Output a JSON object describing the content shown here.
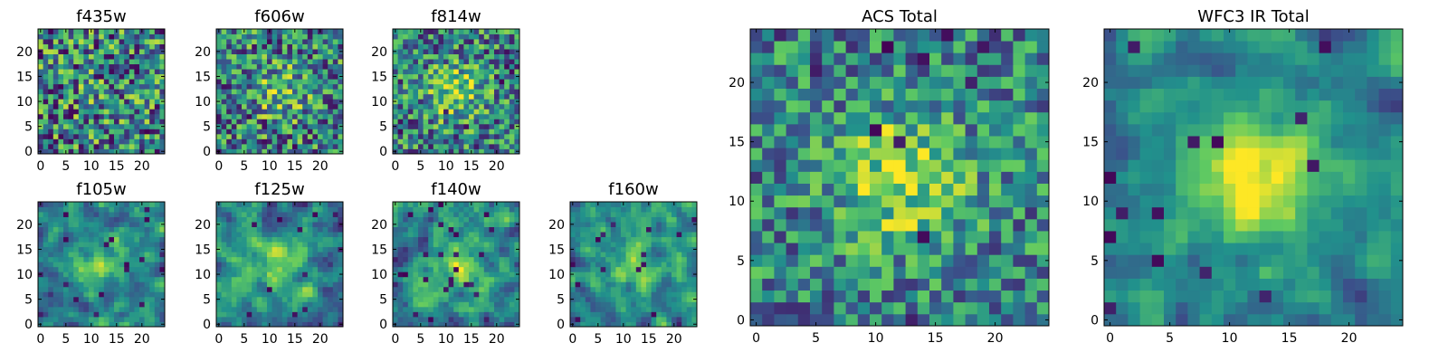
{
  "figure": {
    "colormap": "viridis",
    "colormap_stops": [
      "#440154",
      "#3b528b",
      "#21918c",
      "#5ec962",
      "#fde725"
    ]
  },
  "chart_data": [
    {
      "type": "heatmap",
      "title": "f435w",
      "grid": [
        25,
        25
      ],
      "xlim": [
        -0.5,
        24.5
      ],
      "ylim": [
        -0.5,
        24.5
      ],
      "xticks": [
        "0",
        "5",
        "10",
        "15",
        "20"
      ],
      "yticks": [
        "0",
        "5",
        "10",
        "15",
        "20"
      ],
      "central_peak": 0.05,
      "noise": 1.0,
      "smooth": 0,
      "dark_fraction": 0.04,
      "seed": 11
    },
    {
      "type": "heatmap",
      "title": "f606w",
      "grid": [
        25,
        25
      ],
      "xlim": [
        -0.5,
        24.5
      ],
      "ylim": [
        -0.5,
        24.5
      ],
      "xticks": [
        "0",
        "5",
        "10",
        "15",
        "20"
      ],
      "yticks": [
        "0",
        "5",
        "10",
        "15",
        "20"
      ],
      "central_peak": 0.25,
      "noise": 0.9,
      "smooth": 0,
      "dark_fraction": 0.03,
      "seed": 23
    },
    {
      "type": "heatmap",
      "title": "f814w",
      "grid": [
        25,
        25
      ],
      "xlim": [
        -0.5,
        24.5
      ],
      "ylim": [
        -0.5,
        24.5
      ],
      "xticks": [
        "0",
        "5",
        "10",
        "15",
        "20"
      ],
      "yticks": [
        "0",
        "5",
        "10",
        "15",
        "20"
      ],
      "central_peak": 0.35,
      "noise": 0.85,
      "smooth": 0,
      "dark_fraction": 0.03,
      "seed": 37
    },
    {
      "type": "heatmap",
      "title": "f105w",
      "grid": [
        25,
        25
      ],
      "xlim": [
        -0.5,
        24.5
      ],
      "ylim": [
        -0.5,
        24.5
      ],
      "xticks": [
        "0",
        "5",
        "10",
        "15",
        "20"
      ],
      "yticks": [
        "0",
        "5",
        "10",
        "15",
        "20"
      ],
      "central_peak": 0.35,
      "noise": 0.8,
      "smooth": 1,
      "dark_fraction": 0.02,
      "seed": 41
    },
    {
      "type": "heatmap",
      "title": "f125w",
      "grid": [
        25,
        25
      ],
      "xlim": [
        -0.5,
        24.5
      ],
      "ylim": [
        -0.5,
        24.5
      ],
      "xticks": [
        "0",
        "5",
        "10",
        "15",
        "20"
      ],
      "yticks": [
        "0",
        "5",
        "10",
        "15",
        "20"
      ],
      "central_peak": 0.3,
      "noise": 0.8,
      "smooth": 1,
      "dark_fraction": 0.02,
      "seed": 53
    },
    {
      "type": "heatmap",
      "title": "f140w",
      "grid": [
        25,
        25
      ],
      "xlim": [
        -0.5,
        24.5
      ],
      "ylim": [
        -0.5,
        24.5
      ],
      "xticks": [
        "0",
        "5",
        "10",
        "15",
        "20"
      ],
      "yticks": [
        "0",
        "5",
        "10",
        "15",
        "20"
      ],
      "central_peak": 0.3,
      "noise": 0.8,
      "smooth": 1,
      "dark_fraction": 0.03,
      "seed": 67
    },
    {
      "type": "heatmap",
      "title": "f160w",
      "grid": [
        25,
        25
      ],
      "xlim": [
        -0.5,
        24.5
      ],
      "ylim": [
        -0.5,
        24.5
      ],
      "xticks": [
        "0",
        "5",
        "10",
        "15",
        "20"
      ],
      "yticks": [
        "0",
        "5",
        "10",
        "15",
        "20"
      ],
      "central_peak": 0.3,
      "noise": 0.8,
      "smooth": 1,
      "dark_fraction": 0.03,
      "seed": 79
    },
    {
      "type": "heatmap",
      "title": "ACS Total",
      "grid": [
        25,
        25
      ],
      "xlim": [
        -0.5,
        24.5
      ],
      "ylim": [
        -0.5,
        24.5
      ],
      "xticks": [
        "0",
        "5",
        "10",
        "15",
        "20"
      ],
      "yticks": [
        "0",
        "5",
        "10",
        "15",
        "20"
      ],
      "central_peak": 0.4,
      "noise": 0.7,
      "smooth": 0,
      "dark_fraction": 0.025,
      "seed": 97
    },
    {
      "type": "heatmap",
      "title": "WFC3 IR Total",
      "grid": [
        25,
        25
      ],
      "xlim": [
        -0.5,
        24.5
      ],
      "ylim": [
        -0.5,
        24.5
      ],
      "xticks": [
        "0",
        "5",
        "10",
        "15",
        "20"
      ],
      "yticks": [
        "0",
        "5",
        "10",
        "15",
        "20"
      ],
      "central_peak": 0.55,
      "noise": 0.6,
      "smooth": 1,
      "dark_fraction": 0.03,
      "seed": 113
    }
  ]
}
